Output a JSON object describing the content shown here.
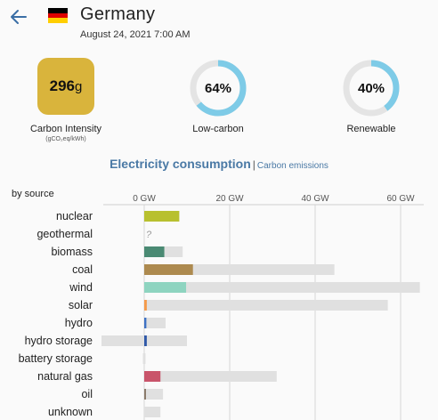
{
  "header": {
    "back_icon": "back-arrow-icon",
    "flag_colors": [
      "#000000",
      "#dd0000",
      "#ffce00"
    ],
    "zone_name": "Germany",
    "datetime": "August 24, 2021 7:00 AM"
  },
  "metrics": {
    "carbon_intensity": {
      "value": "296",
      "unit": "g",
      "label": "Carbon Intensity",
      "sublabel": "(gCO₂eq/kWh)",
      "color": "#d9b43c"
    },
    "low_carbon": {
      "value": "64%",
      "fraction": 0.64,
      "label": "Low-carbon",
      "color": "#7ecbe7"
    },
    "renewable": {
      "value": "40%",
      "fraction": 0.4,
      "label": "Renewable",
      "color": "#7ecbe7"
    }
  },
  "tabs": {
    "active": "Electricity consumption",
    "separator": "|",
    "other": "Carbon emissions"
  },
  "chart_data": {
    "type": "bar",
    "group_label": "by source",
    "x_unit": "GW",
    "xlim": [
      -5,
      65
    ],
    "x_ticks": [
      {
        "value": 0,
        "label": "0 GW"
      },
      {
        "value": 20,
        "label": "20 GW"
      },
      {
        "value": 40,
        "label": "40 GW"
      },
      {
        "value": 60,
        "label": "60 GW"
      }
    ],
    "grid": true,
    "rows": [
      {
        "source": "nuclear",
        "production": 8.2,
        "capacity_min": 0,
        "capacity_max": 8.2,
        "color": "#b8c02f"
      },
      {
        "source": "geothermal",
        "production": null,
        "capacity_min": 0,
        "capacity_max": 0,
        "color": "#999999",
        "unknown_marker": "?"
      },
      {
        "source": "biomass",
        "production": 4.7,
        "capacity_min": 0,
        "capacity_max": 9.0,
        "color": "#4a8a73"
      },
      {
        "source": "coal",
        "production": 11.4,
        "capacity_min": 0,
        "capacity_max": 44.5,
        "color": "#ad8a4f"
      },
      {
        "source": "wind",
        "production": 9.8,
        "capacity_min": 0,
        "capacity_max": 64.5,
        "color": "#8ed4c0"
      },
      {
        "source": "solar",
        "production": 0.6,
        "capacity_min": 0,
        "capacity_max": 57.0,
        "color": "#f59a4a"
      },
      {
        "source": "hydro",
        "production": 0.5,
        "capacity_min": 0,
        "capacity_max": 5.0,
        "color": "#3f72c4"
      },
      {
        "source": "hydro storage",
        "production": 0.6,
        "capacity_min": -10.0,
        "capacity_max": 10.0,
        "color": "#2f58a8"
      },
      {
        "source": "battery storage",
        "production": 0,
        "capacity_min": -0.3,
        "capacity_max": 0.3,
        "color": "#999999"
      },
      {
        "source": "natural gas",
        "production": 3.8,
        "capacity_min": 0,
        "capacity_max": 31.0,
        "color": "#c9546a"
      },
      {
        "source": "oil",
        "production": 0.4,
        "capacity_min": 0,
        "capacity_max": 4.4,
        "color": "#8b7b6b"
      },
      {
        "source": "unknown",
        "production": 0,
        "capacity_min": 0,
        "capacity_max": 3.8,
        "color": "#999999"
      }
    ]
  }
}
